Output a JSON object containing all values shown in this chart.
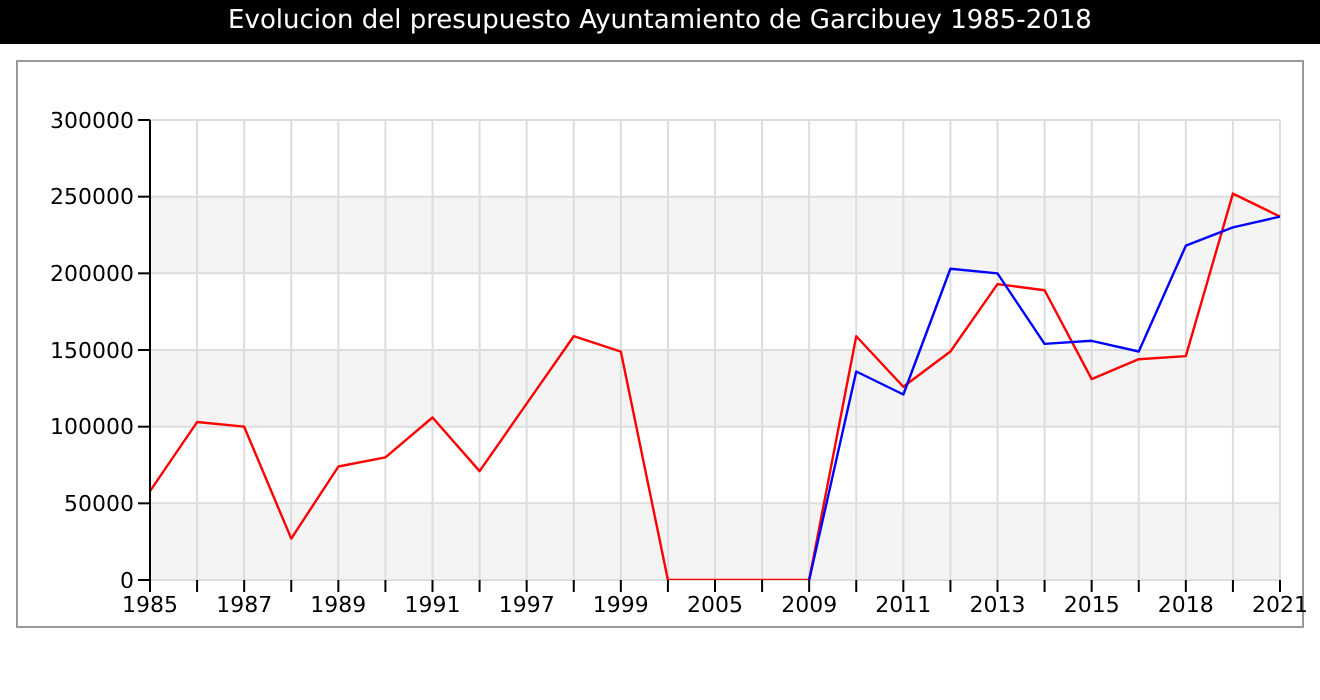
{
  "chart_data": {
    "type": "line",
    "title": "Evolucion del presupuesto Ayuntamiento de Garcibuey 1985-2018",
    "categories": [
      "1985",
      null,
      "1987",
      null,
      "1989",
      null,
      "1991",
      null,
      "1997",
      null,
      "1999",
      null,
      "2005",
      null,
      "2009",
      null,
      "2011",
      null,
      "2013",
      null,
      "2015",
      null,
      "2018",
      null,
      "2021"
    ],
    "series": [
      {
        "color": "#ff0000",
        "values": [
          58000,
          103000,
          100000,
          27000,
          74000,
          80000,
          106000,
          71000,
          115000,
          159000,
          149000,
          0,
          0,
          0,
          0,
          159000,
          126000,
          149000,
          193000,
          189000,
          131000,
          144000,
          146000,
          252000,
          237000
        ]
      },
      {
        "color": "#0000ff",
        "values": [
          null,
          null,
          null,
          null,
          null,
          null,
          null,
          null,
          null,
          null,
          null,
          null,
          null,
          null,
          0,
          136000,
          121000,
          203000,
          200000,
          154000,
          156000,
          149000,
          218000,
          230000,
          237000
        ]
      }
    ],
    "ylim": [
      0,
      300000
    ],
    "yticks": [
      0,
      50000,
      100000,
      150000,
      200000,
      250000,
      300000
    ],
    "grid": true,
    "legend": false,
    "marker": "none",
    "line_style": "solid"
  }
}
